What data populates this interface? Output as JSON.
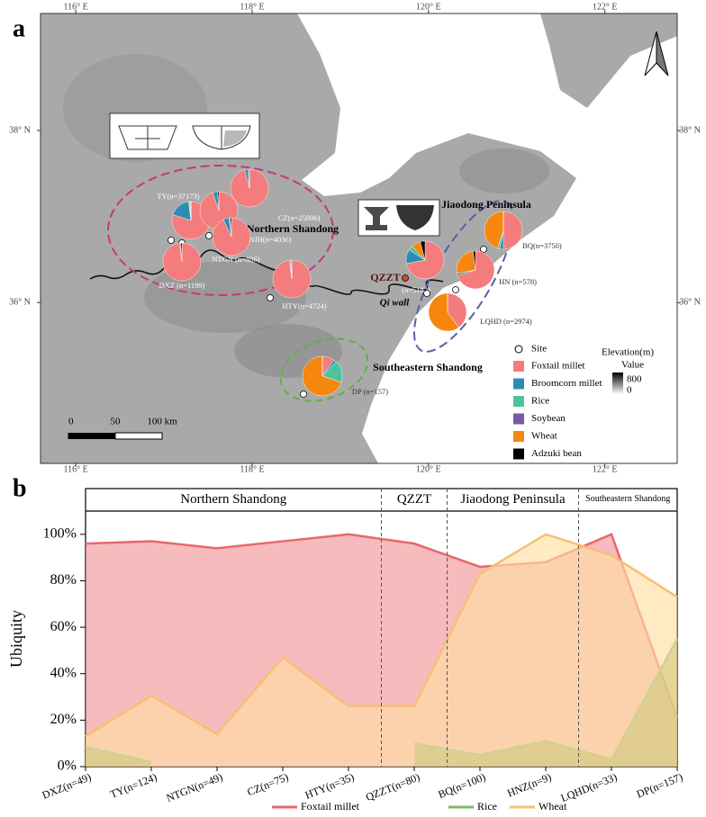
{
  "chart_data": [
    {
      "type": "pie-map",
      "panel": "a",
      "xlim": [
        115.6,
        122.82
      ],
      "ylim": [
        34.13,
        39.36
      ],
      "xticks": [
        {
          "value": 116,
          "label": "116° E"
        },
        {
          "value": 118,
          "label": "118° E"
        },
        {
          "value": 120,
          "label": "120° E"
        },
        {
          "value": 122,
          "label": "122° E"
        }
      ],
      "yticks": [
        {
          "value": 36,
          "label": "36° N"
        },
        {
          "value": 38,
          "label": "38° N"
        }
      ],
      "crops": [
        {
          "name": "Foxtail millet",
          "color": "#f47c7c"
        },
        {
          "name": "Broomcorn millet",
          "color": "#2e8cb3"
        },
        {
          "name": "Rice",
          "color": "#4cc39d"
        },
        {
          "name": "Soybean",
          "color": "#7a58a6"
        },
        {
          "name": "Wheat",
          "color": "#f5870f"
        },
        {
          "name": "Adzuki bean",
          "color": "#000000"
        }
      ],
      "site_legend": "Site",
      "sites": [
        {
          "label": "TY(n=37173)",
          "values": [
            80,
            18,
            1,
            0.5,
            0.5,
            0
          ]
        },
        {
          "label": "CZ(n=25806)",
          "values": [
            96,
            3,
            0,
            0,
            0.5,
            0.5
          ]
        },
        {
          "label": "NJH(n=4036)",
          "values": [
            95,
            4,
            0,
            0,
            0,
            1
          ]
        },
        {
          "label": "NTGN (n=886)",
          "values": [
            93,
            5,
            1,
            0,
            0,
            1
          ]
        },
        {
          "label": "DXZ (n=1199)",
          "values": [
            98,
            1,
            0,
            0,
            0,
            1
          ]
        },
        {
          "label": "HTY(n=4724)",
          "values": [
            98,
            1,
            0,
            0,
            1,
            0
          ]
        },
        {
          "label": "(n=5182)",
          "values": [
            72,
            12,
            4,
            0,
            8,
            4
          ]
        },
        {
          "label": "BQ(n=3750)",
          "values": [
            50,
            3,
            2,
            0,
            45,
            0
          ]
        },
        {
          "label": "HN (n=578)",
          "values": [
            70,
            2,
            0,
            0,
            26,
            2
          ]
        },
        {
          "label": "LQHD (n=2974)",
          "values": [
            40,
            0,
            0,
            0,
            60,
            0
          ]
        },
        {
          "label": "DP (n=157)",
          "values": [
            10,
            2,
            18,
            0,
            70,
            0
          ]
        }
      ],
      "regions": [
        "Northern Shandong",
        "Jiaodong Peninsula",
        "Southeastern Shandong"
      ],
      "site_name": "QZZT",
      "wall_label": "Qi wall",
      "elevation": {
        "title": "Elevation(m)",
        "subtitle": "Value",
        "max": 800,
        "min": 0
      },
      "scale_bar": [
        0,
        50,
        {
          "value": 100,
          "label": "100 km"
        }
      ]
    },
    {
      "type": "area",
      "panel": "b",
      "categories": [
        "DXZ(n=49)",
        "TY(n=124)",
        "NTGN(n=49)",
        "CZ(n=75)",
        "HTY(n=35)",
        "QZZT(n=80)",
        "BQ(n=100)",
        "HNZ(n=9)",
        "LQHD(n=33)",
        "DP(n=157)"
      ],
      "regions": [
        {
          "name": "Northern Shandong",
          "categories": [
            "DXZ(n=49)",
            "HTY(n=35)"
          ]
        },
        {
          "name": "QZZT",
          "categories": [
            "QZZT(n=80)",
            "QZZT(n=80)"
          ]
        },
        {
          "name": "Jiaodong Peninsula",
          "categories": [
            "BQ(n=100)",
            "HNZ(n=9)"
          ]
        },
        {
          "name": "Southeastern Shandong",
          "categories": [
            "LQHD(n=33)",
            "DP(n=157)"
          ]
        }
      ],
      "series": [
        {
          "name": "Foxtail millet",
          "color": "#e8686c",
          "fill": "rgba(236,120,124,0.5)",
          "values": [
            96,
            97,
            94,
            97,
            100,
            96,
            86,
            88,
            100,
            21
          ]
        },
        {
          "name": "Rice",
          "color": "#7cb767",
          "fill": "rgba(120,160,50,0.6)",
          "values": [
            8.5,
            2,
            null,
            null,
            null,
            10,
            5,
            11,
            3,
            55
          ]
        },
        {
          "name": "Wheat",
          "color": "#f8bf72",
          "fill": "rgba(255,222,165,0.65)",
          "values": [
            13,
            30.5,
            14,
            47,
            26,
            26,
            83,
            100,
            91,
            73
          ]
        }
      ],
      "ylim": [
        0,
        110
      ],
      "yticks": [
        {
          "value": 0,
          "label": "0%"
        },
        {
          "value": 20,
          "label": "20%"
        },
        {
          "value": 40,
          "label": "40%"
        },
        {
          "value": 60,
          "label": "60%"
        },
        {
          "value": 80,
          "label": "80%"
        },
        {
          "value": 100,
          "label": "100%"
        }
      ],
      "y_label": "Ubiquity"
    }
  ]
}
